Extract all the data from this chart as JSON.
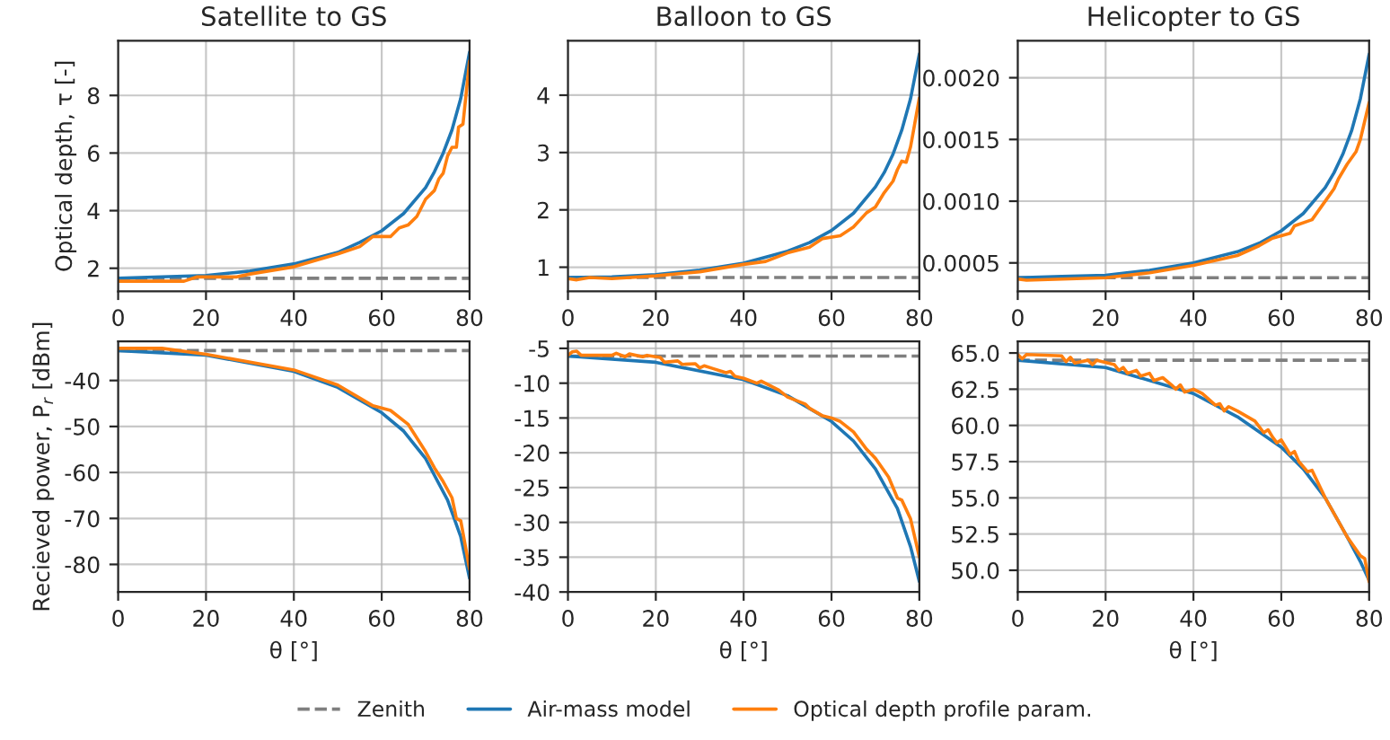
{
  "chart_data": [
    {
      "type": "line",
      "title": "Satellite to GS",
      "ylabel": "Optical depth, τ [-]",
      "xlim": [
        0,
        80
      ],
      "xticks": [
        0,
        20,
        40,
        60,
        80
      ],
      "ylim": [
        1.2,
        9.9
      ],
      "yticks": [
        2,
        4,
        6,
        8
      ],
      "grid": true,
      "legend": "bottom",
      "series": [
        {
          "name": "Zenith",
          "color": "#7f7f7f",
          "line_style": "dashed",
          "x": [
            0,
            80
          ],
          "values": [
            1.65,
            1.65
          ]
        },
        {
          "name": "Air-mass model",
          "color": "#1f77b4",
          "line_style": "solid",
          "x": [
            0,
            10,
            20,
            30,
            40,
            50,
            55,
            60,
            65,
            70,
            72,
            74,
            76,
            78,
            80
          ],
          "values": [
            1.65,
            1.7,
            1.75,
            1.9,
            2.15,
            2.55,
            2.9,
            3.3,
            3.9,
            4.8,
            5.35,
            6.0,
            6.8,
            7.9,
            9.5
          ]
        },
        {
          "name": "Optical depth profile param.",
          "color": "#ff7f0e",
          "line_style": "solid",
          "x": [
            0,
            15,
            18,
            27,
            30,
            40,
            50,
            55,
            58,
            62,
            64,
            66,
            68,
            70,
            72,
            73,
            74,
            75,
            76,
            77,
            77.5,
            78.5,
            80
          ],
          "values": [
            1.55,
            1.55,
            1.7,
            1.7,
            1.8,
            2.05,
            2.5,
            2.75,
            3.1,
            3.1,
            3.4,
            3.5,
            3.8,
            4.4,
            4.7,
            5.1,
            5.3,
            5.9,
            6.2,
            6.2,
            6.9,
            7.0,
            9.2
          ]
        }
      ]
    },
    {
      "type": "line",
      "title": "Balloon to GS",
      "xlim": [
        0,
        80
      ],
      "xticks": [
        0,
        20,
        40,
        60,
        80
      ],
      "ylim": [
        0.58,
        4.95
      ],
      "yticks": [
        1,
        2,
        3,
        4
      ],
      "grid": true,
      "series": [
        {
          "color": "#7f7f7f",
          "line_style": "dashed",
          "x": [
            0,
            80
          ],
          "values": [
            0.82,
            0.82
          ]
        },
        {
          "color": "#1f77b4",
          "line_style": "solid",
          "x": [
            0,
            10,
            20,
            30,
            40,
            50,
            55,
            60,
            65,
            70,
            72,
            74,
            76,
            78,
            80
          ],
          "values": [
            0.82,
            0.83,
            0.87,
            0.95,
            1.07,
            1.28,
            1.43,
            1.64,
            1.94,
            2.4,
            2.65,
            2.97,
            3.39,
            3.94,
            4.72
          ]
        },
        {
          "color": "#ff7f0e",
          "line_style": "solid",
          "x": [
            0,
            2,
            5,
            10,
            20,
            30,
            40,
            45,
            50,
            55,
            58,
            62,
            65,
            68,
            70,
            72,
            74,
            75,
            76,
            77,
            78,
            80
          ],
          "values": [
            0.8,
            0.78,
            0.82,
            0.8,
            0.85,
            0.92,
            1.05,
            1.1,
            1.25,
            1.35,
            1.5,
            1.55,
            1.7,
            1.95,
            2.05,
            2.3,
            2.5,
            2.7,
            2.85,
            2.83,
            3.1,
            3.95
          ]
        }
      ]
    },
    {
      "type": "line",
      "title": "Helicopter to GS",
      "xlim": [
        0,
        80
      ],
      "xticks": [
        0,
        20,
        40,
        60,
        80
      ],
      "ylim": [
        0.00027,
        0.0023
      ],
      "yticks": [
        {
          "value": 0.0005,
          "label": "0.0005"
        },
        {
          "value": 0.001,
          "label": "0.0010"
        },
        {
          "value": 0.0015,
          "label": "0.0015"
        },
        {
          "value": 0.002,
          "label": "0.0020"
        }
      ],
      "grid": true,
      "series": [
        {
          "color": "#7f7f7f",
          "line_style": "dashed",
          "x": [
            0,
            80
          ],
          "values": [
            0.00038,
            0.00038
          ]
        },
        {
          "color": "#1f77b4",
          "line_style": "solid",
          "x": [
            0,
            10,
            20,
            30,
            40,
            50,
            55,
            60,
            65,
            70,
            72,
            74,
            76,
            78,
            80
          ],
          "values": [
            0.00038,
            0.00039,
            0.0004,
            0.00044,
            0.0005,
            0.00059,
            0.00066,
            0.00076,
            0.0009,
            0.00111,
            0.00123,
            0.00138,
            0.00157,
            0.00183,
            0.00219
          ]
        },
        {
          "color": "#ff7f0e",
          "line_style": "solid",
          "x": [
            0,
            2,
            20,
            30,
            40,
            50,
            55,
            58,
            62,
            63,
            67,
            69,
            71,
            72,
            73,
            75,
            77,
            78,
            80
          ],
          "values": [
            0.00037,
            0.00036,
            0.00038,
            0.00042,
            0.00048,
            0.00056,
            0.00064,
            0.0007,
            0.00074,
            0.0008,
            0.00085,
            0.00095,
            0.00105,
            0.0011,
            0.00118,
            0.0013,
            0.0014,
            0.0015,
            0.0018
          ]
        }
      ]
    },
    {
      "type": "line",
      "xlabel": "θ [°]",
      "ylabel": "Recieved power, P$_{r}$ [dBm]",
      "xlim": [
        0,
        80
      ],
      "xticks": [
        0,
        20,
        40,
        60,
        80
      ],
      "ylim": [
        -86,
        -31.5
      ],
      "yticks": [
        -80,
        -70,
        -60,
        -50,
        -40
      ],
      "grid": true,
      "series": [
        {
          "color": "#7f7f7f",
          "line_style": "dashed",
          "x": [
            0,
            80
          ],
          "values": [
            -33.5,
            -33.5
          ]
        },
        {
          "color": "#1f77b4",
          "line_style": "solid",
          "x": [
            0,
            20,
            40,
            50,
            60,
            65,
            70,
            75,
            78,
            80
          ],
          "values": [
            -33.5,
            -34.5,
            -38,
            -41.5,
            -47,
            -51,
            -57,
            -66,
            -74,
            -83
          ]
        },
        {
          "color": "#ff7f0e",
          "line_style": "solid",
          "x": [
            0,
            10,
            20,
            40,
            50,
            58,
            62,
            66,
            70,
            72,
            74,
            76,
            77,
            78,
            80
          ],
          "values": [
            -33,
            -33,
            -34.3,
            -37.7,
            -41,
            -45.5,
            -46.5,
            -49.5,
            -55.5,
            -59,
            -62,
            -65.5,
            -70,
            -70.5,
            -81
          ]
        }
      ]
    },
    {
      "type": "line",
      "xlabel": "θ [°]",
      "xlim": [
        0,
        80
      ],
      "xticks": [
        0,
        20,
        40,
        60,
        80
      ],
      "ylim": [
        -40,
        -4
      ],
      "yticks": [
        -40,
        -35,
        -30,
        -25,
        -20,
        -15,
        -10,
        -5
      ],
      "grid": true,
      "series": [
        {
          "color": "#7f7f7f",
          "line_style": "dashed",
          "x": [
            0,
            80
          ],
          "values": [
            -6.1,
            -6.1
          ]
        },
        {
          "color": "#1f77b4",
          "line_style": "solid",
          "x": [
            0,
            20,
            40,
            50,
            60,
            65,
            70,
            75,
            78,
            80
          ],
          "values": [
            -6.1,
            -7,
            -9.5,
            -11.8,
            -15.5,
            -18.3,
            -22.3,
            -28,
            -33.5,
            -38.5
          ]
        },
        {
          "color": "#ff7f0e",
          "line_style": "solid",
          "x": [
            0,
            1,
            2,
            3,
            10,
            11,
            13,
            14,
            17,
            18,
            21,
            22,
            25,
            26,
            29,
            30,
            31,
            33,
            35,
            36,
            37,
            38,
            40,
            43,
            44,
            48,
            50,
            54,
            55,
            58,
            60,
            62,
            65,
            68,
            70,
            73,
            75,
            76,
            78,
            80
          ],
          "values": [
            -6,
            -5.5,
            -5.4,
            -6,
            -6,
            -5.7,
            -6.2,
            -5.8,
            -6.2,
            -6,
            -6.3,
            -7,
            -6.8,
            -7.3,
            -7.2,
            -7.8,
            -7.5,
            -7.9,
            -8.3,
            -8.5,
            -8.3,
            -9,
            -9.3,
            -10,
            -9.7,
            -11,
            -12,
            -13,
            -13.6,
            -14.7,
            -15,
            -15.5,
            -17,
            -19.5,
            -20.8,
            -23.5,
            -26.5,
            -26.8,
            -29.5,
            -35
          ]
        }
      ]
    },
    {
      "type": "line",
      "xlabel": "θ [°]",
      "xlim": [
        0,
        80
      ],
      "xticks": [
        0,
        20,
        40,
        60,
        80
      ],
      "ylim": [
        48.5,
        65.8
      ],
      "yticks": [
        {
          "value": 50,
          "label": "50.0"
        },
        {
          "value": 52.5,
          "label": "52.5"
        },
        {
          "value": 55,
          "label": "55.0"
        },
        {
          "value": 57.5,
          "label": "57.5"
        },
        {
          "value": 60,
          "label": "60.0"
        },
        {
          "value": 62.5,
          "label": "62.5"
        },
        {
          "value": 65,
          "label": "65.0"
        }
      ],
      "grid": true,
      "series": [
        {
          "color": "#7f7f7f",
          "line_style": "dashed",
          "x": [
            0,
            80
          ],
          "values": [
            64.5,
            64.5
          ]
        },
        {
          "color": "#1f77b4",
          "line_style": "solid",
          "x": [
            0,
            20,
            40,
            50,
            60,
            65,
            70,
            75,
            78,
            80
          ],
          "values": [
            64.5,
            64,
            62.2,
            60.6,
            58.5,
            57,
            55,
            52.3,
            50.6,
            49.3
          ]
        },
        {
          "color": "#ff7f0e",
          "line_style": "solid",
          "x": [
            0,
            1,
            2,
            10,
            11,
            12,
            13,
            16,
            17,
            18,
            22,
            23,
            24,
            25,
            27,
            28,
            30,
            31,
            33,
            35,
            36,
            37,
            38,
            40,
            42,
            45,
            46,
            47,
            48,
            50,
            54,
            56,
            57,
            58,
            59,
            60,
            62,
            63,
            64,
            66,
            67,
            70,
            75,
            78,
            79,
            80
          ],
          "values": [
            64.9,
            64.6,
            64.9,
            64.8,
            64.4,
            64.7,
            64.3,
            64.5,
            64.2,
            64.5,
            64.2,
            63.8,
            64,
            63.6,
            63.8,
            63.4,
            63.6,
            63.1,
            63.3,
            62.8,
            62.5,
            62.8,
            62.3,
            62.5,
            62.2,
            61.4,
            61.5,
            61,
            61.3,
            61,
            60.3,
            59.5,
            59.7,
            59.2,
            58.8,
            59,
            58,
            58.2,
            57.5,
            56.8,
            56.9,
            55,
            52.3,
            51,
            50.8,
            49.2
          ]
        }
      ]
    }
  ]
}
